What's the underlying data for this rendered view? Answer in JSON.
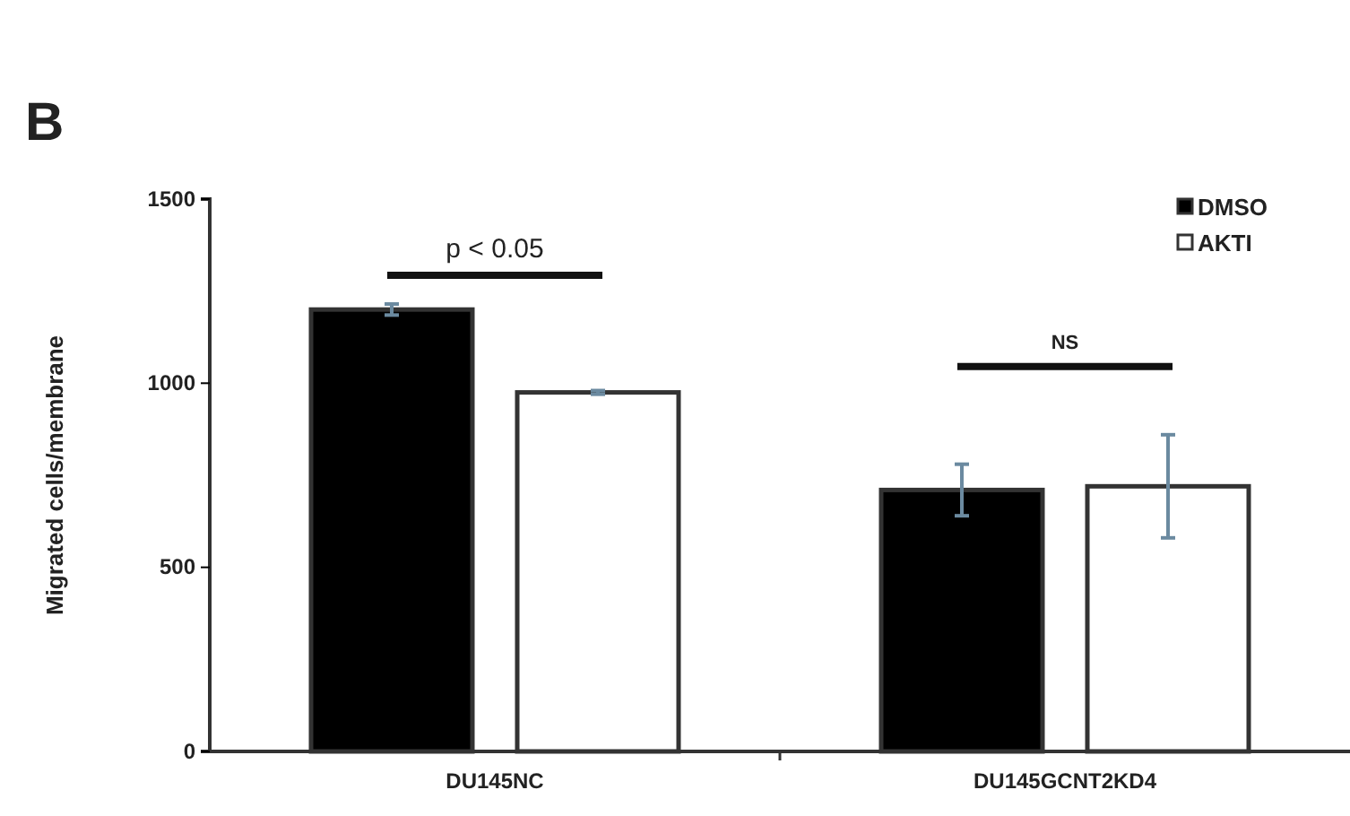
{
  "chart_data": {
    "type": "bar",
    "ylabel": "Migrated cells/membrane",
    "categories": [
      "DU145NC",
      "DU145GCNT2KD4"
    ],
    "series": [
      {
        "name": "DMSO",
        "color": "#000000",
        "values": [
          1200,
          710
        ],
        "errors": [
          15,
          70
        ]
      },
      {
        "name": "AKTI",
        "color": "#ffffff",
        "values": [
          975,
          720
        ],
        "errors": [
          5,
          140
        ]
      }
    ],
    "ylim": [
      0,
      1500
    ],
    "yticks": [
      0,
      500,
      1000,
      1500
    ],
    "grid": false,
    "legend": "top right",
    "annotations": [
      "B",
      "p < 0.05",
      "NS"
    ]
  }
}
